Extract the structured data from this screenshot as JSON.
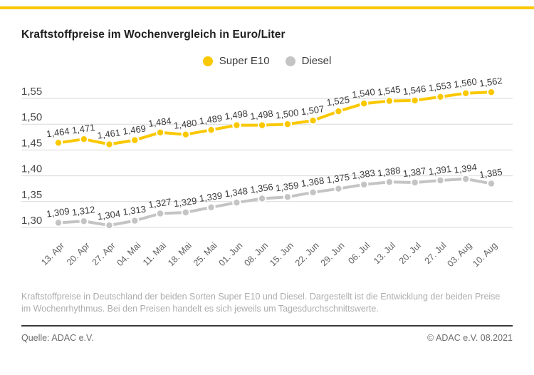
{
  "page": {
    "title": "Kraftstoffpreise im Wochenvergleich in Euro/Liter",
    "accent_color": "#FAC800"
  },
  "legend": {
    "items": [
      {
        "label": "Super E10",
        "color": "#FAC800"
      },
      {
        "label": "Diesel",
        "color": "#C4C4C4"
      }
    ]
  },
  "chart_data": {
    "type": "line",
    "title": "Kraftstoffpreise im Wochenvergleich in Euro/Liter",
    "xlabel": "",
    "ylabel": "Euro/Liter",
    "categories": [
      "13. Apr",
      "20. Apr",
      "27. Apr",
      "04. Mai",
      "11. Mai",
      "18. Mai",
      "25. Mai",
      "01. Jun",
      "08. Jun",
      "15. Jun",
      "22. Jun",
      "29. Jun",
      "06. Jul",
      "13. Jul",
      "20. Jul",
      "27. Jul",
      "03. Aug",
      "10. Aug"
    ],
    "series": [
      {
        "name": "Super E10",
        "color": "#FAC800",
        "values": [
          1.464,
          1.471,
          1.461,
          1.469,
          1.484,
          1.48,
          1.489,
          1.498,
          1.498,
          1.5,
          1.507,
          1.525,
          1.54,
          1.545,
          1.546,
          1.553,
          1.56,
          1.562
        ]
      },
      {
        "name": "Diesel",
        "color": "#C4C4C4",
        "values": [
          1.309,
          1.312,
          1.304,
          1.313,
          1.327,
          1.329,
          1.339,
          1.348,
          1.356,
          1.359,
          1.368,
          1.375,
          1.383,
          1.388,
          1.387,
          1.391,
          1.394,
          1.385
        ]
      }
    ],
    "yticks": [
      1.3,
      1.35,
      1.4,
      1.45,
      1.5,
      1.55
    ],
    "ytick_labels": [
      "1,30",
      "1,35",
      "1,40",
      "1,45",
      "1,50",
      "1,55"
    ],
    "ylim": [
      1.3,
      1.55
    ],
    "grid": true,
    "legend_position": "top-center",
    "value_labels": true,
    "decimal_separator": ","
  },
  "footer": {
    "description": "Kraftstoffpreise in Deutschland der beiden Sorten Super E10 und Diesel. Dargestellt ist die Entwicklung der beiden Preise im Wochenrhythmus. Bei den Preisen handelt es sich jeweils um Tagesdurchschnittswerte.",
    "source": "Quelle: ADAC e.V.",
    "copyright": "© ADAC e.V. 08.2021"
  }
}
